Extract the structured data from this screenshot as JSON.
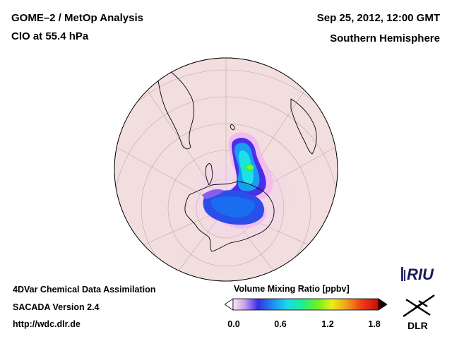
{
  "header": {
    "title": "GOME–2 / MetOp Analysis",
    "subtitle": "ClO at 55.4 hPa",
    "datetime": "Sep 25, 2012, 12:00 GMT",
    "region": "Southern Hemisphere"
  },
  "footer": {
    "line1": "4DVar Chemical Data Assimilation",
    "line2": "SACADA Version 2.4",
    "line3": "http://wdc.dlr.de"
  },
  "colorbar": {
    "title": "Volume Mixing Ratio [ppbv]",
    "ticks": [
      "0.0",
      "0.6",
      "1.2",
      "1.8"
    ],
    "min": 0.0,
    "max": 1.8,
    "colors": [
      "#f4d8f4",
      "#c8a0e8",
      "#7a4ce0",
      "#2a2ee8",
      "#1a8cf0",
      "#18d8f0",
      "#1ef08c",
      "#6ef020",
      "#e8f018",
      "#f0a018",
      "#f04018",
      "#c80a0a"
    ]
  },
  "map": {
    "projection": "orthographic-south-polar",
    "background_color": "#f2dede",
    "land_outline_color": "#000000"
  },
  "logos": {
    "riu": "RIU",
    "dlr": "DLR"
  }
}
